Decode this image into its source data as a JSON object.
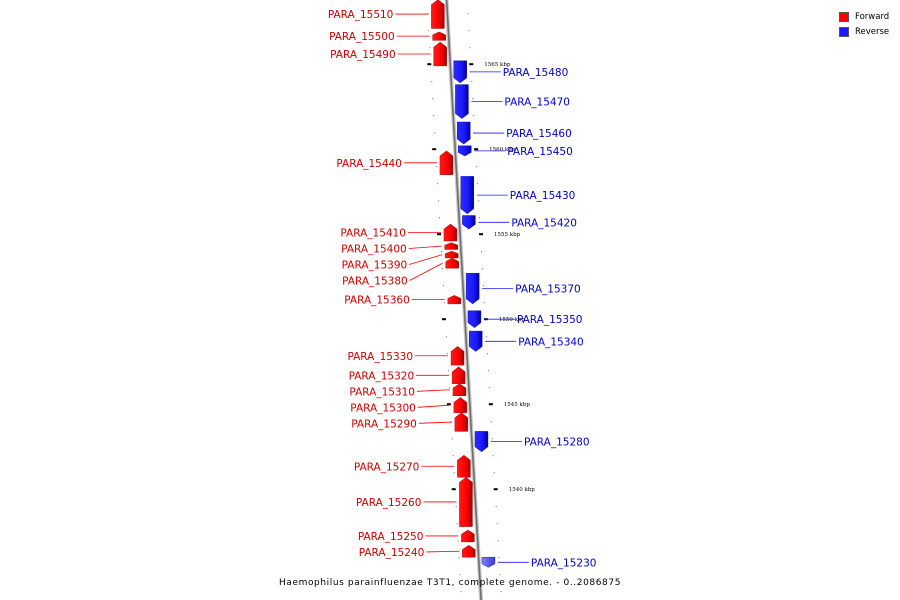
{
  "legend": {
    "forward_label": "Forward",
    "reverse_label": "Reverse",
    "forward_color": "#ff0000",
    "reverse_color": "#1a1aff"
  },
  "caption": "Haemophilus parainfluenzae T3T1, complete genome. - 0..2086875",
  "scale": {
    "unit": "kbp",
    "tick_labels": [
      {
        "kbp": 1565,
        "text": "1565 kbp"
      },
      {
        "kbp": 1560,
        "text": "1560 kbp"
      },
      {
        "kbp": 1555,
        "text": "1555 kbp"
      },
      {
        "kbp": 1550,
        "text": "1550 kbp"
      },
      {
        "kbp": 1545,
        "text": "1545 kbp"
      },
      {
        "kbp": 1540,
        "text": "1540 kbp"
      }
    ]
  },
  "genes": [
    {
      "name": "PARA_15510",
      "strand": "forward",
      "start_kbp": 1568.8,
      "end_kbp": 1567.1
    },
    {
      "name": "PARA_15500",
      "strand": "forward",
      "start_kbp": 1566.9,
      "end_kbp": 1566.4
    },
    {
      "name": "PARA_15490",
      "strand": "forward",
      "start_kbp": 1566.3,
      "end_kbp": 1564.9
    },
    {
      "name": "PARA_15480",
      "strand": "reverse",
      "start_kbp": 1565.2,
      "end_kbp": 1563.9
    },
    {
      "name": "PARA_15470",
      "strand": "reverse",
      "start_kbp": 1563.8,
      "end_kbp": 1561.8
    },
    {
      "name": "PARA_15460",
      "strand": "reverse",
      "start_kbp": 1561.6,
      "end_kbp": 1560.3
    },
    {
      "name": "PARA_15450",
      "strand": "reverse",
      "start_kbp": 1560.2,
      "end_kbp": 1559.6
    },
    {
      "name": "PARA_15440",
      "strand": "forward",
      "start_kbp": 1559.9,
      "end_kbp": 1558.5
    },
    {
      "name": "PARA_15430",
      "strand": "reverse",
      "start_kbp": 1558.4,
      "end_kbp": 1556.2
    },
    {
      "name": "PARA_15420",
      "strand": "reverse",
      "start_kbp": 1556.1,
      "end_kbp": 1555.3
    },
    {
      "name": "PARA_15410",
      "strand": "forward",
      "start_kbp": 1555.6,
      "end_kbp": 1554.6
    },
    {
      "name": "PARA_15400",
      "strand": "forward",
      "start_kbp": 1554.5,
      "end_kbp": 1554.1
    },
    {
      "name": "PARA_15390",
      "strand": "forward",
      "start_kbp": 1554.0,
      "end_kbp": 1553.6
    },
    {
      "name": "PARA_15380",
      "strand": "forward",
      "start_kbp": 1553.6,
      "end_kbp": 1553.0
    },
    {
      "name": "PARA_15370",
      "strand": "reverse",
      "start_kbp": 1552.7,
      "end_kbp": 1550.9
    },
    {
      "name": "PARA_15360",
      "strand": "forward",
      "start_kbp": 1551.4,
      "end_kbp": 1550.9
    },
    {
      "name": "PARA_15350",
      "strand": "reverse",
      "start_kbp": 1550.5,
      "end_kbp": 1549.5
    },
    {
      "name": "PARA_15340",
      "strand": "reverse",
      "start_kbp": 1549.3,
      "end_kbp": 1548.1
    },
    {
      "name": "PARA_15330",
      "strand": "forward",
      "start_kbp": 1548.4,
      "end_kbp": 1547.3
    },
    {
      "name": "PARA_15320",
      "strand": "forward",
      "start_kbp": 1547.2,
      "end_kbp": 1546.2
    },
    {
      "name": "PARA_15310",
      "strand": "forward",
      "start_kbp": 1546.2,
      "end_kbp": 1545.5
    },
    {
      "name": "PARA_15300",
      "strand": "forward",
      "start_kbp": 1545.4,
      "end_kbp": 1544.5
    },
    {
      "name": "PARA_15290",
      "strand": "forward",
      "start_kbp": 1544.5,
      "end_kbp": 1543.4
    },
    {
      "name": "PARA_15280",
      "strand": "reverse",
      "start_kbp": 1543.4,
      "end_kbp": 1542.2
    },
    {
      "name": "PARA_15270",
      "strand": "forward",
      "start_kbp": 1542.0,
      "end_kbp": 1540.7
    },
    {
      "name": "PARA_15260",
      "strand": "forward",
      "start_kbp": 1540.7,
      "end_kbp": 1537.8
    },
    {
      "name": "PARA_15250",
      "strand": "forward",
      "start_kbp": 1537.6,
      "end_kbp": 1536.9
    },
    {
      "name": "PARA_15240",
      "strand": "forward",
      "start_kbp": 1536.7,
      "end_kbp": 1536.0
    },
    {
      "name": "PARA_15230",
      "strand": "reverse",
      "start_kbp": 1536.0,
      "end_kbp": 1535.4
    }
  ]
}
